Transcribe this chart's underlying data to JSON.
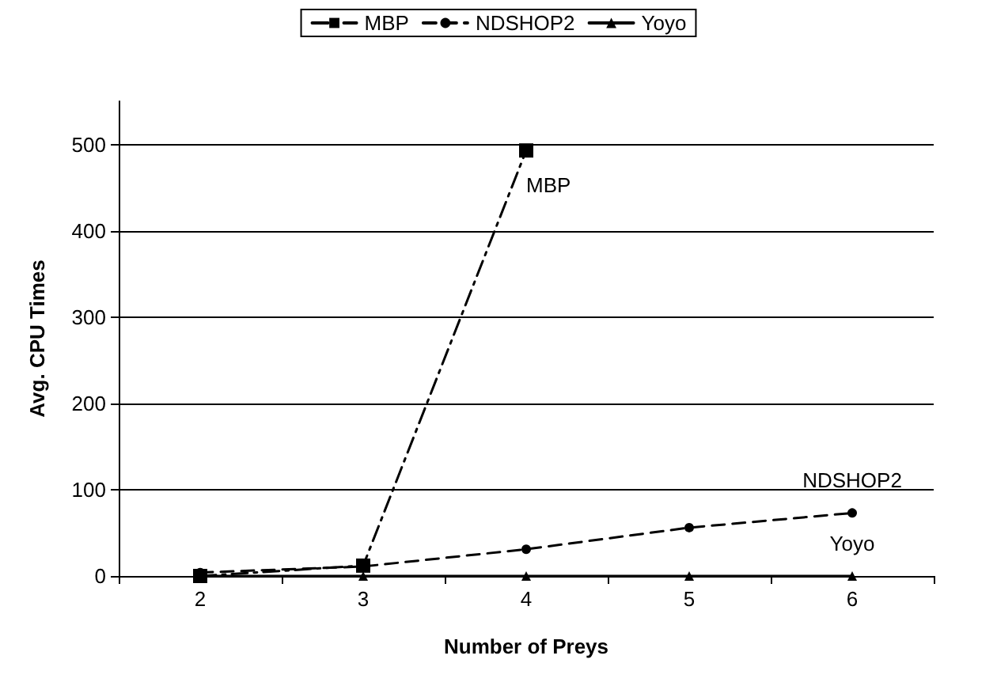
{
  "chart_data": {
    "type": "line",
    "xlabel": "Number of Preys",
    "ylabel": "Avg. CPU Times",
    "categories": [
      "2",
      "3",
      "4",
      "5",
      "6"
    ],
    "series": [
      {
        "name": "MBP",
        "color": "#000000",
        "marker": "square",
        "line_style": "dashdot",
        "values": [
          0,
          12,
          493,
          null,
          null
        ]
      },
      {
        "name": "NDSHOP2",
        "color": "#000000",
        "marker": "circle",
        "line_style": "dashed",
        "values": [
          4,
          11,
          31,
          56,
          73
        ]
      },
      {
        "name": "Yoyo",
        "color": "#000000",
        "marker": "triangle",
        "line_style": "solid",
        "values": [
          0,
          0,
          0,
          0,
          0
        ]
      }
    ],
    "ylim": [
      0,
      550
    ],
    "yticks": [
      0,
      100,
      200,
      300,
      400,
      500
    ],
    "grid": "y",
    "legend": "top"
  }
}
